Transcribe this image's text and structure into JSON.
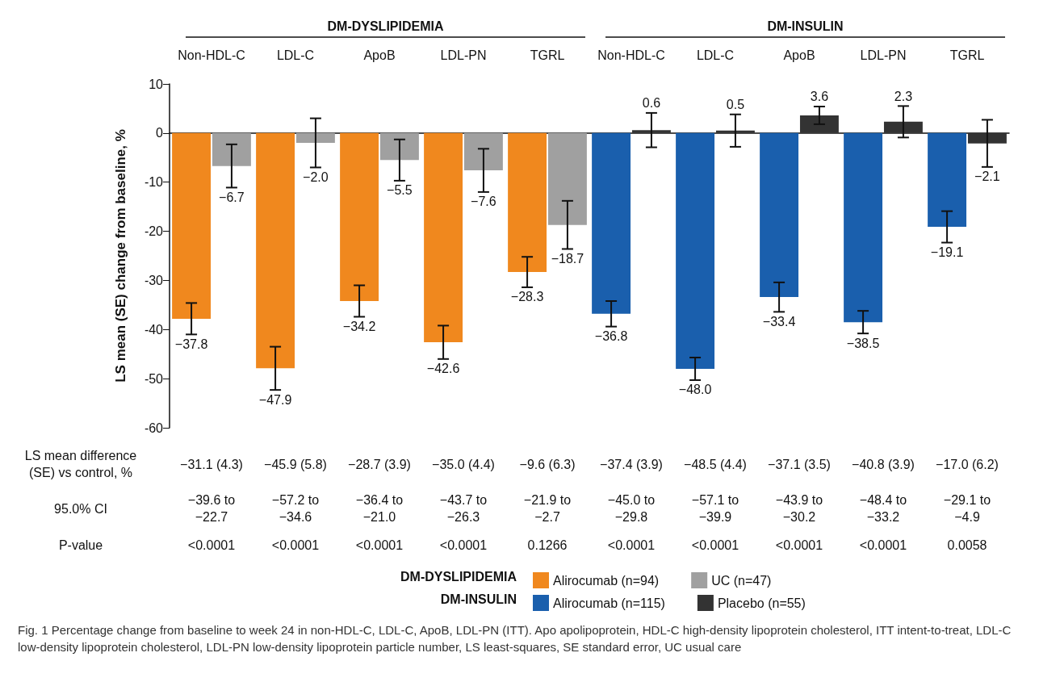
{
  "chart_data": {
    "type": "bar",
    "ylabel": "LS mean (SE) change from baseline, %",
    "categories": [
      "Non-HDL-C",
      "LDL-C",
      "ApoB",
      "LDL-PN",
      "TGRL",
      "Non-HDL-C",
      "LDL-C",
      "ApoB",
      "LDL-PN",
      "TGRL"
    ],
    "series": [
      {
        "name": "Alirocumab (n=94)",
        "color": "#f0881e",
        "values": [
          -37.8,
          -47.9,
          -34.2,
          -42.6,
          -28.3,
          null,
          null,
          null,
          null,
          null
        ],
        "errors": [
          3.2,
          4.4,
          3.2,
          3.4,
          3.1,
          null,
          null,
          null,
          null,
          null
        ],
        "value_labels": [
          "−37.8",
          "−47.9",
          "−34.2",
          "−42.6",
          "−28.3",
          null,
          null,
          null,
          null,
          null
        ]
      },
      {
        "name": "UC (n=47)",
        "color": "#a0a0a0",
        "values": [
          -6.7,
          -2.0,
          -5.5,
          -7.6,
          -18.7,
          null,
          null,
          null,
          null,
          null
        ],
        "errors": [
          4.4,
          5.0,
          4.2,
          4.4,
          4.9,
          null,
          null,
          null,
          null,
          null
        ],
        "value_labels": [
          "−6.7",
          "−2.0",
          "−5.5",
          "−7.6",
          "−18.7",
          null,
          null,
          null,
          null,
          null
        ]
      },
      {
        "name": "Alirocumab (n=115)",
        "color": "#1a5fad",
        "values": [
          null,
          null,
          null,
          null,
          null,
          -36.8,
          -48.0,
          -33.4,
          -38.5,
          -19.1
        ],
        "errors": [
          null,
          null,
          null,
          null,
          null,
          2.6,
          2.3,
          3.0,
          2.3,
          3.2
        ],
        "value_labels": [
          null,
          null,
          null,
          null,
          null,
          "−36.8",
          "−48.0",
          "−33.4",
          "−38.5",
          "−19.1"
        ]
      },
      {
        "name": "Placebo (n=55)",
        "color": "#333333",
        "values": [
          null,
          null,
          null,
          null,
          null,
          0.6,
          0.5,
          3.6,
          2.3,
          -2.1
        ],
        "errors": [
          null,
          null,
          null,
          null,
          null,
          3.5,
          3.3,
          1.8,
          3.2,
          4.8
        ],
        "value_labels": [
          null,
          null,
          null,
          null,
          null,
          "0.6",
          "0.5",
          "3.6",
          "2.3",
          "−2.1"
        ]
      }
    ],
    "ylim": [
      -60,
      10
    ],
    "yticks": [
      -60,
      -50,
      -40,
      -30,
      -20,
      -10,
      0,
      10
    ],
    "legend": "bottom",
    "annotations": [
      "DM-DYSLIPIDEMIA",
      "DM-INSULIN",
      "LS mean difference\n(SE) vs control, %",
      "−31.1 (4.3)",
      "−45.9 (5.8)",
      "−28.7 (3.9)",
      "−35.0 (4.4)",
      "−9.6 (6.3)",
      "−37.4 (3.9)",
      "−48.5 (4.4)",
      "−37.1 (3.5)",
      "−40.8 (3.9)",
      "−17.0 (6.2)",
      "95.0% CI",
      "−39.6 to\n−22.7",
      "−57.2 to\n−34.6",
      "−36.4 to\n−21.0",
      "−43.7 to\n−26.3",
      "−21.9 to\n−2.7",
      "−45.0 to\n−29.8",
      "−57.1 to\n−39.9",
      "−43.9 to\n−30.2",
      "−48.4 to\n−33.2",
      "−29.1 to\n−4.9",
      "P-value",
      "<0.0001",
      "<0.0001",
      "<0.0001",
      "<0.0001",
      "0.1266",
      "<0.0001",
      "<0.0001",
      "<0.0001",
      "<0.0001",
      "0.0058",
      "DM-DYSLIPIDEMIA",
      "DM-INSULIN",
      "Fig. 1 Percentage change from baseline to week 24 in non-HDL-C, LDL-C, ApoB, LDL-PN (ITT). Apo apolipoprotein, HDL-C high-density lipoprotein cholesterol, ITT intent-to-treat, LDL-C low-density lipoprotein cholesterol, LDL-PN low-density lipoprotein particle number, LS least-squares, SE standard error, UC usual care"
    ]
  }
}
